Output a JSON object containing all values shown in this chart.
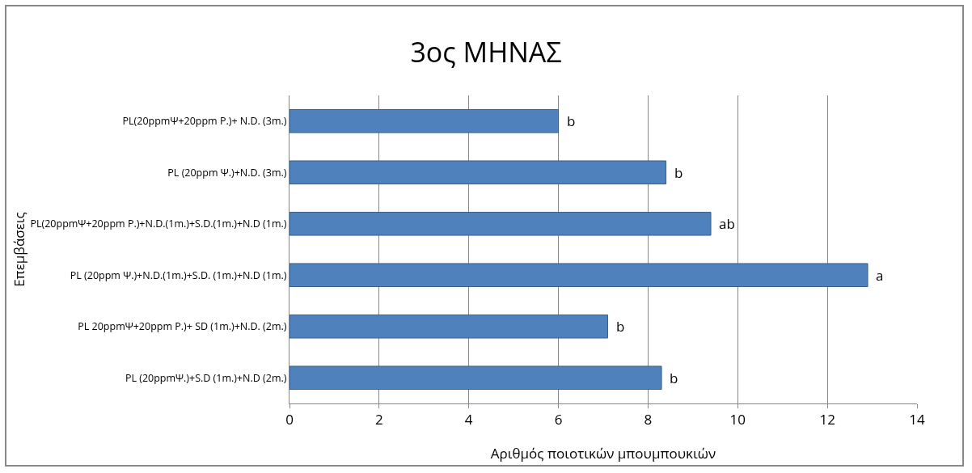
{
  "chart_data": {
    "type": "bar",
    "orientation": "horizontal",
    "title": "3ος ΜΗΝΑΣ",
    "xlabel": "Αριθμός ποιοτικών μπουμπουκιών",
    "ylabel": "Επεμβάσεις",
    "categories": [
      "PL(20ppmΨ+20ppm P.)+ N.D. (3m.)",
      "PL (20ppm Ψ.)+N.D. (3m.)",
      "PL(20ppmΨ+20ppm P.)+N.D.(1m.)+S.D.(1m.)+N.D (1m.)",
      "PL (20ppm Ψ.)+N.D.(1m.)+S.D. (1m.)+N.D (1m.)",
      "PL 20ppmΨ+20ppm P.)+ SD (1m.)+N.D. (2m.)",
      "PL (20ppmΨ.)+S.D (1m.)+N.D (2m.)"
    ],
    "values": [
      6,
      8.4,
      9.4,
      12.9,
      7.1,
      8.3
    ],
    "color": "#4f81bd",
    "xlim": [
      0,
      14
    ],
    "xticks": [
      0,
      2,
      4,
      6,
      8,
      10,
      12,
      14
    ],
    "grid": "x",
    "legend": false,
    "annotations": [
      {
        "text": "b",
        "x": 6,
        "y": "PL(20ppmΨ+20ppm P.)+ N.D. (3m.)"
      },
      {
        "text": "b",
        "x": 8.4,
        "y": "PL (20ppm Ψ.)+N.D. (3m.)"
      },
      {
        "text": "ab",
        "x": 9.4,
        "y": "PL(20ppmΨ+20ppm P.)+N.D.(1m.)+S.D.(1m.)+N.D (1m.)"
      },
      {
        "text": "a",
        "x": 12.9,
        "y": "PL (20ppm Ψ.)+N.D.(1m.)+S.D. (1m.)+N.D (1m.)"
      },
      {
        "text": "b",
        "x": 7.1,
        "y": "PL 20ppmΨ+20ppm P.)+ SD (1m.)+N.D. (2m.)"
      },
      {
        "text": "b",
        "x": 8.3,
        "y": "PL (20ppmΨ.)+S.D (1m.)+N.D (2m.)"
      }
    ]
  }
}
